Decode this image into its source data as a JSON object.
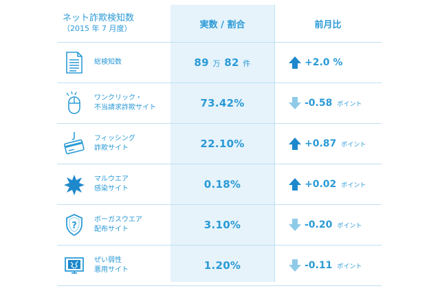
{
  "header": {
    "title": "ネット詐欺検知数",
    "subtitle": "（2015 年 7 月度）",
    "col_value": "実数 / 割合",
    "col_change": "前月比"
  },
  "colors": {
    "accent": "#2a9ad6",
    "up": "#1e88cc",
    "down": "#8fcbe8",
    "column_bg": "#e6f3fb"
  },
  "rows": [
    {
      "icon": "document-icon",
      "label1": "総検知数",
      "label2": "",
      "value_num1": "89",
      "value_unit1": "万",
      "value_num2": "82",
      "value_unit2": "件",
      "direction": "up",
      "change": "+2.0 %",
      "change_unit": ""
    },
    {
      "icon": "mouse-click-icon",
      "label1": "ワンクリック・",
      "label2": "不当請求詐欺サイト",
      "value": "73.42%",
      "direction": "down",
      "change": "-0.58",
      "change_unit": "ポイント"
    },
    {
      "icon": "credit-card-hook-icon",
      "label1": "フィッシング",
      "label2": "詐欺サイト",
      "value": "22.10%",
      "direction": "up",
      "change": "+0.87",
      "change_unit": "ポイント"
    },
    {
      "icon": "malware-burst-icon",
      "label1": "マルウエア",
      "label2": "感染サイト",
      "value": "0.18%",
      "direction": "up",
      "change": "+0.02",
      "change_unit": "ポイント"
    },
    {
      "icon": "shield-question-icon",
      "label1": "ボーガスウエア",
      "label2": "配布サイト",
      "value": "3.10%",
      "direction": "down",
      "change": "-0.20",
      "change_unit": "ポイント"
    },
    {
      "icon": "vulnerable-monitor-icon",
      "label1": "ぜい弱性",
      "label2": "悪用サイト",
      "value": "1.20%",
      "direction": "down",
      "change": "-0.11",
      "change_unit": "ポイント"
    }
  ]
}
